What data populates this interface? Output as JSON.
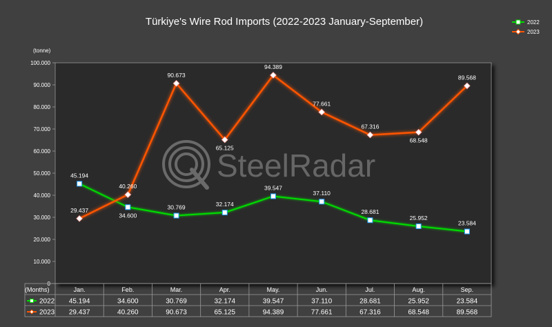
{
  "chart_data": {
    "type": "line",
    "title": "Türkiye's Wire Rod Imports (2022-2023 January-September)",
    "ylabel": "(tonne)",
    "xlabel": "(Months)",
    "ylim": [
      0,
      100000
    ],
    "yticks": [
      "0",
      "10.000",
      "20.000",
      "30.000",
      "40.000",
      "50.000",
      "60.000",
      "70.000",
      "80.000",
      "90.000",
      "100.000"
    ],
    "categories": [
      "Jan.",
      "Feb.",
      "Mar.",
      "Apr.",
      "May.",
      "Jun.",
      "Jul.",
      "Aug.",
      "Sep."
    ],
    "series": [
      {
        "name": "2022",
        "color": "#00dd00",
        "marker": "square",
        "values": [
          45194,
          34600,
          30769,
          32174,
          39547,
          37110,
          28681,
          25952,
          23584
        ],
        "labels": [
          "45.194",
          "34.600",
          "30.769",
          "32.174",
          "39.547",
          "37.110",
          "28.681",
          "25.952",
          "23.584"
        ]
      },
      {
        "name": "2023",
        "color": "#ff5500",
        "marker": "diamond",
        "values": [
          29437,
          40260,
          90673,
          65125,
          94389,
          77661,
          67316,
          68548,
          89568
        ],
        "labels": [
          "29.437",
          "40.260",
          "90.673",
          "65.125",
          "94.389",
          "77.661",
          "67.316",
          "68.548",
          "89.568"
        ]
      }
    ],
    "legend": "top-right",
    "grid": false,
    "data_table": true
  },
  "watermark": "SteelRadar"
}
